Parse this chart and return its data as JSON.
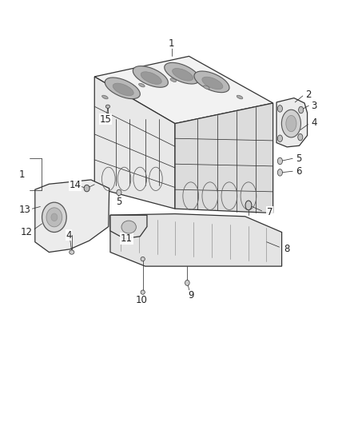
{
  "bg_color": "#ffffff",
  "line_color": "#333333",
  "text_color": "#222222",
  "fig_width": 4.38,
  "fig_height": 5.33,
  "dpi": 100,
  "font_size": 8.5
}
